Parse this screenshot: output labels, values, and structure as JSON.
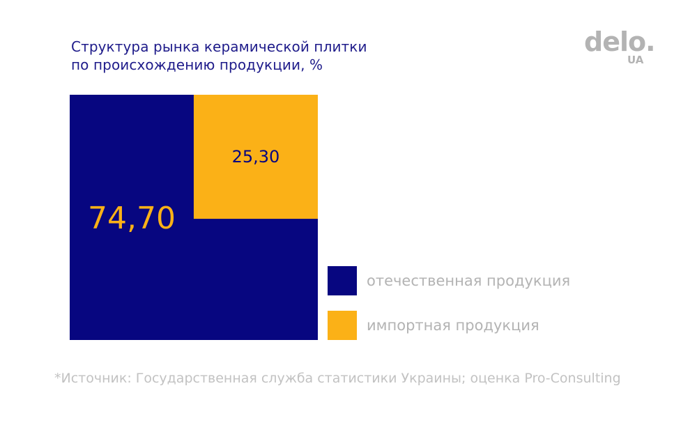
{
  "header": {
    "title_line1": "Структура рынка керамической плитки",
    "title_line2": "по происхождению продукции, %"
  },
  "logo": {
    "word": "delo.",
    "tld": "UA"
  },
  "chart_data": {
    "type": "treemap",
    "title": "Структура рынка керамической плитки по происхождению продукции, %",
    "categories": [
      "отечественная продукция",
      "импортная продукция"
    ],
    "values": [
      74.7,
      25.3
    ],
    "value_labels": [
      "74,70",
      "25,30"
    ],
    "colors": [
      "#070680",
      "#fbb117"
    ],
    "legend_position": "right"
  },
  "legend": {
    "items": [
      {
        "label": "отечественная продукция",
        "color": "#070680"
      },
      {
        "label": "импортная продукция",
        "color": "#fbb117"
      }
    ]
  },
  "footer": {
    "source": "*Источник: Государственная служба статистики Украины; оценка Pro-Consulting"
  }
}
